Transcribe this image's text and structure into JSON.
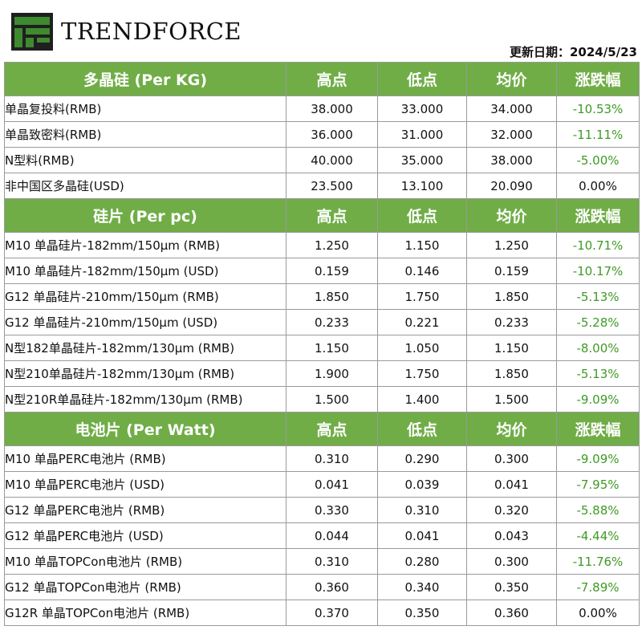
{
  "brand": {
    "name": "TRENDFORCE",
    "logo_icon": "trendforce-tf-logo-icon",
    "logo_colors": {
      "green": "#3e8a2e",
      "dark": "#1f1f1f"
    }
  },
  "update_date": "更新日期：2024/5/23",
  "colors": {
    "section_bg": "#70ad47",
    "section_text": "#ffffff",
    "change_color": "#3e9a24"
  },
  "sections": [
    {
      "title": "多晶硅 (Per KG)",
      "columns": [
        "高点",
        "低点",
        "均价",
        "涨跌幅"
      ],
      "rows": [
        {
          "name": "单晶复投料(RMB)",
          "high": "38.000",
          "low": "33.000",
          "avg": "34.000",
          "change": "-10.53%"
        },
        {
          "name": "单晶致密料(RMB)",
          "high": "36.000",
          "low": "31.000",
          "avg": "32.000",
          "change": "-11.11%"
        },
        {
          "name": "N型料(RMB)",
          "high": "40.000",
          "low": "35.000",
          "avg": "38.000",
          "change": "-5.00%"
        },
        {
          "name": "非中国区多晶硅(USD)",
          "high": "23.500",
          "low": "13.100",
          "avg": "20.090",
          "change": "0.00%"
        }
      ]
    },
    {
      "title": "硅片 (Per pc)",
      "columns": [
        "高点",
        "低点",
        "均价",
        "涨跌幅"
      ],
      "rows": [
        {
          "name": "M10 单晶硅片-182mm/150μm (RMB)",
          "high": "1.250",
          "low": "1.150",
          "avg": "1.250",
          "change": "-10.71%"
        },
        {
          "name": "M10 单晶硅片-182mm/150μm (USD)",
          "high": "0.159",
          "low": "0.146",
          "avg": "0.159",
          "change": "-10.17%"
        },
        {
          "name": "G12 单晶硅片-210mm/150μm  (RMB)",
          "high": "1.850",
          "low": "1.750",
          "avg": "1.850",
          "change": "-5.13%"
        },
        {
          "name": "G12 单晶硅片-210mm/150μm  (USD)",
          "high": "0.233",
          "low": "0.221",
          "avg": "0.233",
          "change": "-5.28%"
        },
        {
          "name": "N型182单晶硅片-182mm/130μm (RMB)",
          "high": "1.150",
          "low": "1.050",
          "avg": "1.150",
          "change": "-8.00%"
        },
        {
          "name": "N型210单晶硅片-182mm/130μm (RMB)",
          "high": "1.900",
          "low": "1.750",
          "avg": "1.850",
          "change": "-5.13%"
        },
        {
          "name": "N型210R单晶硅片-182mm/130μm (RMB)",
          "high": "1.500",
          "low": "1.400",
          "avg": "1.500",
          "change": "-9.09%"
        }
      ]
    },
    {
      "title": "电池片 (Per Watt)",
      "columns": [
        "高点",
        "低点",
        "均价",
        "涨跌幅"
      ],
      "rows": [
        {
          "name": "M10 单晶PERC电池片 (RMB)",
          "high": "0.310",
          "low": "0.290",
          "avg": "0.300",
          "change": "-9.09%"
        },
        {
          "name": "M10 单晶PERC电池片 (USD)",
          "high": "0.041",
          "low": "0.039",
          "avg": "0.041",
          "change": "-7.95%"
        },
        {
          "name": "G12 单晶PERC电池片 (RMB)",
          "high": "0.330",
          "low": "0.310",
          "avg": "0.320",
          "change": "-5.88%"
        },
        {
          "name": "G12 单晶PERC电池片 (USD)",
          "high": "0.044",
          "low": "0.041",
          "avg": "0.043",
          "change": "-4.44%"
        },
        {
          "name": "M10 单晶TOPCon电池片 (RMB)",
          "high": "0.310",
          "low": "0.280",
          "avg": "0.300",
          "change": "-11.76%"
        },
        {
          "name": "G12 单晶TOPCon电池片 (RMB)",
          "high": "0.360",
          "low": "0.340",
          "avg": "0.350",
          "change": "-7.89%"
        },
        {
          "name": "G12R 单晶TOPCon电池片 (RMB)",
          "high": "0.370",
          "low": "0.350",
          "avg": "0.360",
          "change": "0.00%"
        }
      ]
    }
  ]
}
